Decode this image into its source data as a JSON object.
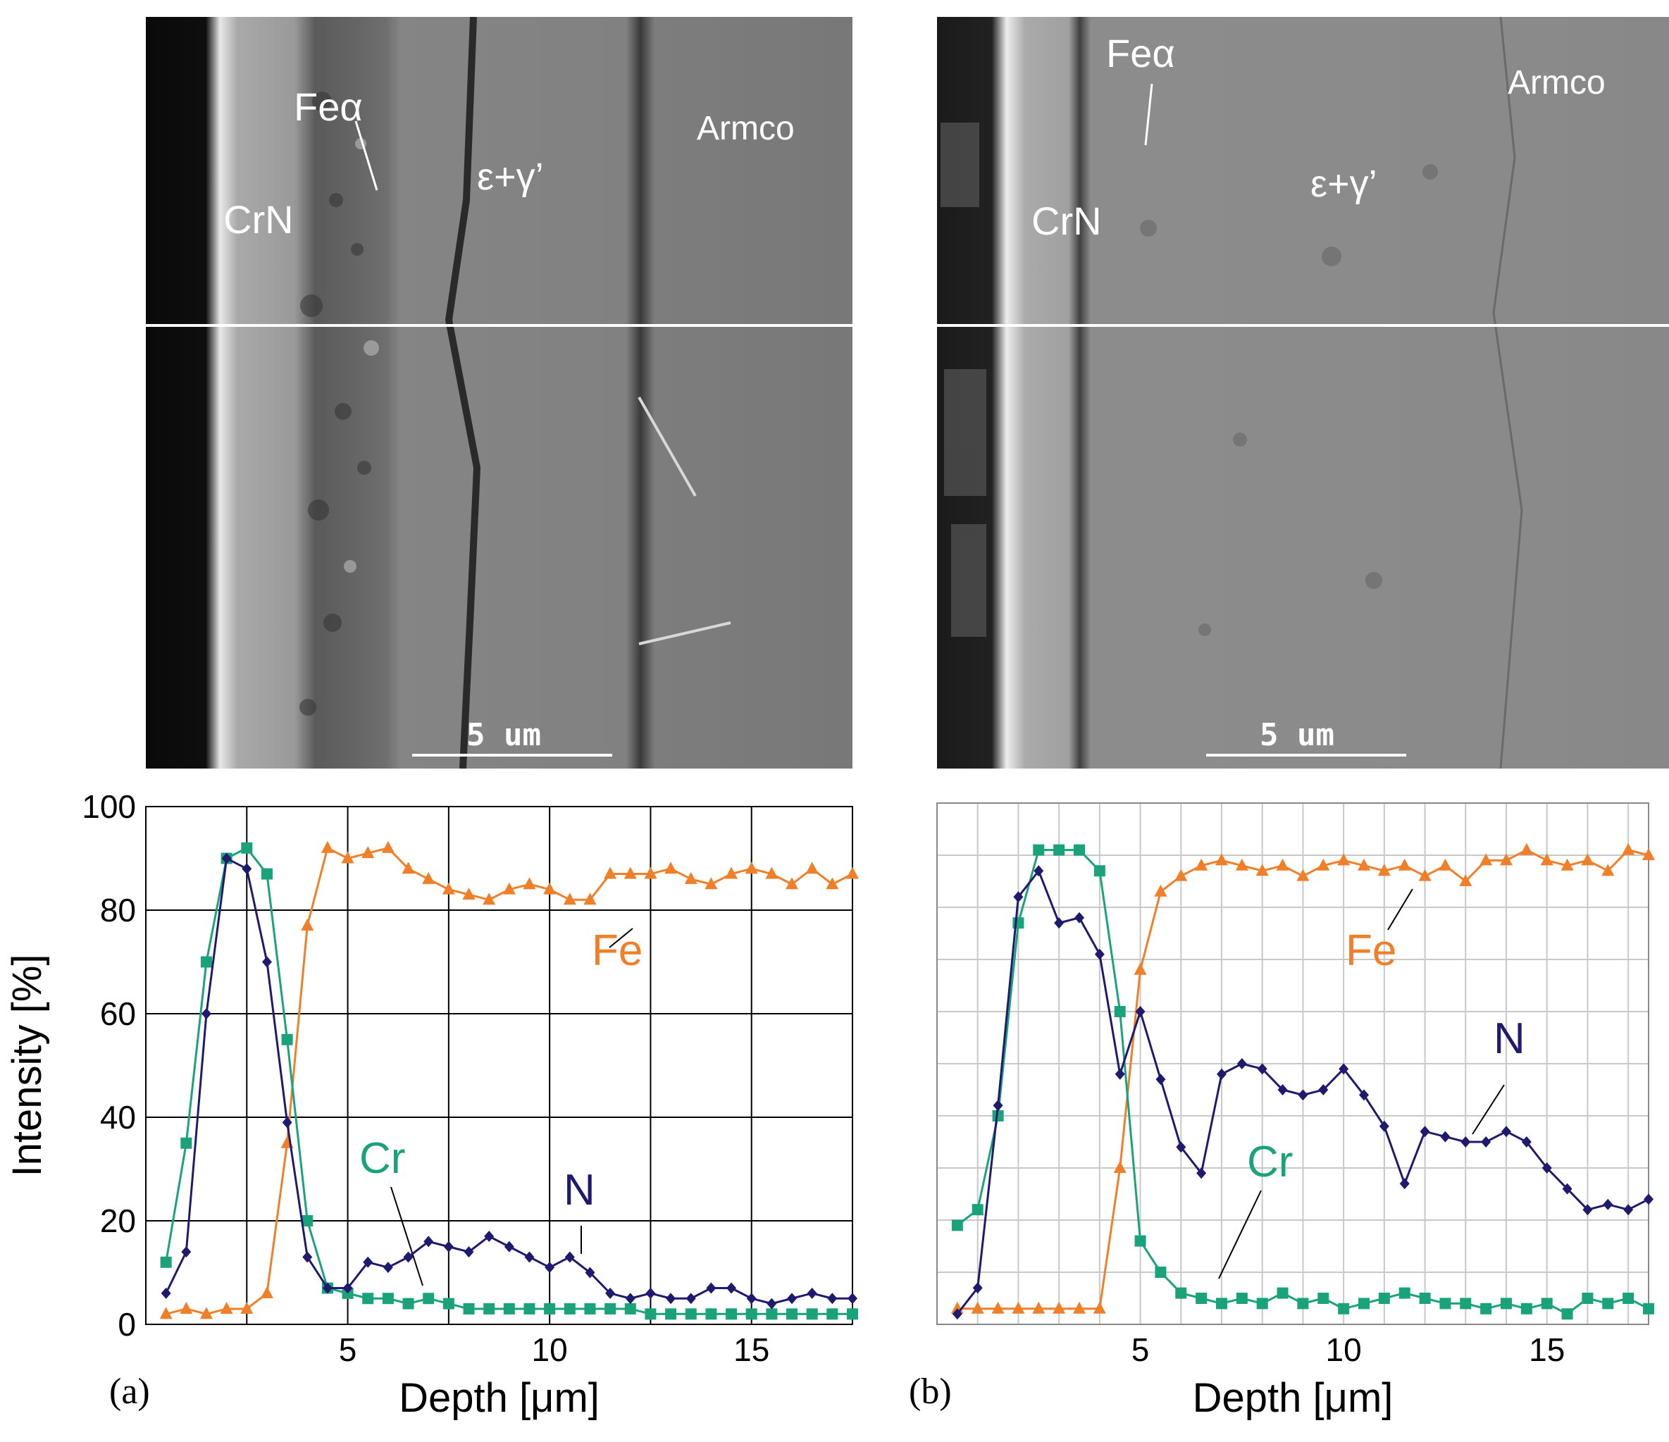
{
  "panels": [
    {
      "letter": "(a)",
      "micrograph": {
        "labels": {
          "crn": "CrN",
          "fe_alpha": "Feα",
          "eps_gamma": "ε+γ’",
          "armco": "Armco"
        },
        "scale_bar": "5 um"
      }
    },
    {
      "letter": "(b)",
      "micrograph": {
        "labels": {
          "crn": "CrN",
          "fe_alpha": "Feα",
          "eps_gamma": "ε+γ’",
          "armco": "Armco"
        },
        "scale_bar": "5 um"
      }
    }
  ],
  "chart_data": [
    {
      "type": "line",
      "xlabel": "Depth [μm]",
      "ylabel": "Intensity [%]",
      "xlim": [
        0,
        17.5
      ],
      "ylim": [
        0,
        100
      ],
      "x_ticks": [
        5,
        10,
        15
      ],
      "y_ticks": [
        0,
        20,
        40,
        60,
        80,
        100
      ],
      "grid": "major",
      "series": [
        {
          "name": "Fe",
          "color": "#f07f2a",
          "marker": "triangle",
          "x": [
            0.5,
            1,
            1.5,
            2,
            2.5,
            3,
            3.5,
            4,
            4.5,
            5,
            5.5,
            6,
            6.5,
            7,
            7.5,
            8,
            8.5,
            9,
            9.5,
            10,
            10.5,
            11,
            11.5,
            12,
            12.5,
            13,
            13.5,
            14,
            14.5,
            15,
            15.5,
            16,
            16.5,
            17,
            17.5
          ],
          "values": [
            2,
            3,
            2,
            3,
            3,
            6,
            35,
            77,
            92,
            90,
            91,
            92,
            88,
            86,
            84,
            83,
            82,
            84,
            85,
            84,
            82,
            82,
            87,
            87,
            87,
            88,
            86,
            85,
            87,
            88,
            87,
            85,
            88,
            85,
            87
          ]
        },
        {
          "name": "Cr",
          "color": "#1aa37a",
          "marker": "square",
          "x": [
            0.5,
            1,
            1.5,
            2,
            2.5,
            3,
            3.5,
            4,
            4.5,
            5,
            5.5,
            6,
            6.5,
            7,
            7.5,
            8,
            8.5,
            9,
            9.5,
            10,
            10.5,
            11,
            11.5,
            12,
            12.5,
            13,
            13.5,
            14,
            14.5,
            15,
            15.5,
            16,
            16.5,
            17,
            17.5
          ],
          "values": [
            12,
            35,
            70,
            90,
            92,
            87,
            55,
            20,
            7,
            6,
            5,
            5,
            4,
            5,
            4,
            3,
            3,
            3,
            3,
            3,
            3,
            3,
            3,
            3,
            2,
            2,
            2,
            2,
            2,
            2,
            2,
            2,
            2,
            2,
            2
          ]
        },
        {
          "name": "N",
          "color": "#1f1a6e",
          "marker": "diamond",
          "x": [
            0.5,
            1,
            1.5,
            2,
            2.5,
            3,
            3.5,
            4,
            4.5,
            5,
            5.5,
            6,
            6.5,
            7,
            7.5,
            8,
            8.5,
            9,
            9.5,
            10,
            10.5,
            11,
            11.5,
            12,
            12.5,
            13,
            13.5,
            14,
            14.5,
            15,
            15.5,
            16,
            16.5,
            17,
            17.5
          ],
          "values": [
            6,
            14,
            60,
            90,
            88,
            70,
            39,
            13,
            7,
            7,
            12,
            11,
            13,
            16,
            15,
            14,
            17,
            15,
            13,
            11,
            13,
            10,
            6,
            5,
            6,
            5,
            5,
            7,
            7,
            5,
            4,
            5,
            6,
            5,
            5
          ]
        }
      ],
      "annotations": [
        "Fe",
        "Cr",
        "N"
      ]
    },
    {
      "type": "line",
      "xlabel": "Depth [μm]",
      "ylabel": "",
      "xlim": [
        0,
        17.5
      ],
      "ylim": [
        0,
        100
      ],
      "x_ticks": [
        5,
        10,
        15
      ],
      "y_ticks": [],
      "grid": "major+minor",
      "series": [
        {
          "name": "Fe",
          "color": "#f07f2a",
          "marker": "triangle",
          "x": [
            0.5,
            1,
            1.5,
            2,
            2.5,
            3,
            3.5,
            4,
            4.5,
            5,
            5.5,
            6,
            6.5,
            7,
            7.5,
            8,
            8.5,
            9,
            9.5,
            10,
            10.5,
            11,
            11.5,
            12,
            12.5,
            13,
            13.5,
            14,
            14.5,
            15,
            15.5,
            16,
            16.5,
            17,
            17.5
          ],
          "values": [
            3,
            3,
            3,
            3,
            3,
            3,
            3,
            3,
            30,
            68,
            83,
            86,
            88,
            89,
            88,
            87,
            88,
            86,
            88,
            89,
            88,
            87,
            88,
            86,
            88,
            85,
            89,
            89,
            91,
            89,
            88,
            89,
            87,
            91,
            90
          ]
        },
        {
          "name": "Cr",
          "color": "#1aa37a",
          "marker": "square",
          "x": [
            0.5,
            1,
            1.5,
            2,
            2.5,
            3,
            3.5,
            4,
            4.5,
            5,
            5.5,
            6,
            6.5,
            7,
            7.5,
            8,
            8.5,
            9,
            9.5,
            10,
            10.5,
            11,
            11.5,
            12,
            12.5,
            13,
            13.5,
            14,
            14.5,
            15,
            15.5,
            16,
            16.5,
            17,
            17.5
          ],
          "values": [
            19,
            22,
            40,
            77,
            91,
            91,
            91,
            87,
            60,
            16,
            10,
            6,
            5,
            4,
            5,
            4,
            6,
            4,
            5,
            3,
            4,
            5,
            6,
            5,
            4,
            4,
            3,
            4,
            3,
            4,
            2,
            5,
            4,
            5,
            3
          ]
        },
        {
          "name": "N",
          "color": "#1f1a6e",
          "marker": "diamond",
          "x": [
            0.5,
            1,
            1.5,
            2,
            2.5,
            3,
            3.5,
            4,
            4.5,
            5,
            5.5,
            6,
            6.5,
            7,
            7.5,
            8,
            8.5,
            9,
            9.5,
            10,
            10.5,
            11,
            11.5,
            12,
            12.5,
            13,
            13.5,
            14,
            14.5,
            15,
            15.5,
            16,
            16.5,
            17,
            17.5
          ],
          "values": [
            2,
            7,
            42,
            82,
            87,
            77,
            78,
            71,
            48,
            60,
            47,
            34,
            29,
            48,
            50,
            49,
            45,
            44,
            45,
            49,
            44,
            38,
            27,
            37,
            36,
            35,
            35,
            37,
            35,
            30,
            26,
            22,
            23,
            22,
            24
          ]
        }
      ],
      "annotations": [
        "Fe",
        "Cr",
        "N"
      ]
    }
  ],
  "colors": {
    "fe": "#f07f2a",
    "cr": "#1aa37a",
    "n": "#1f1a6e",
    "grid_major": "#000000",
    "grid_minor": "#c8c8c8"
  }
}
